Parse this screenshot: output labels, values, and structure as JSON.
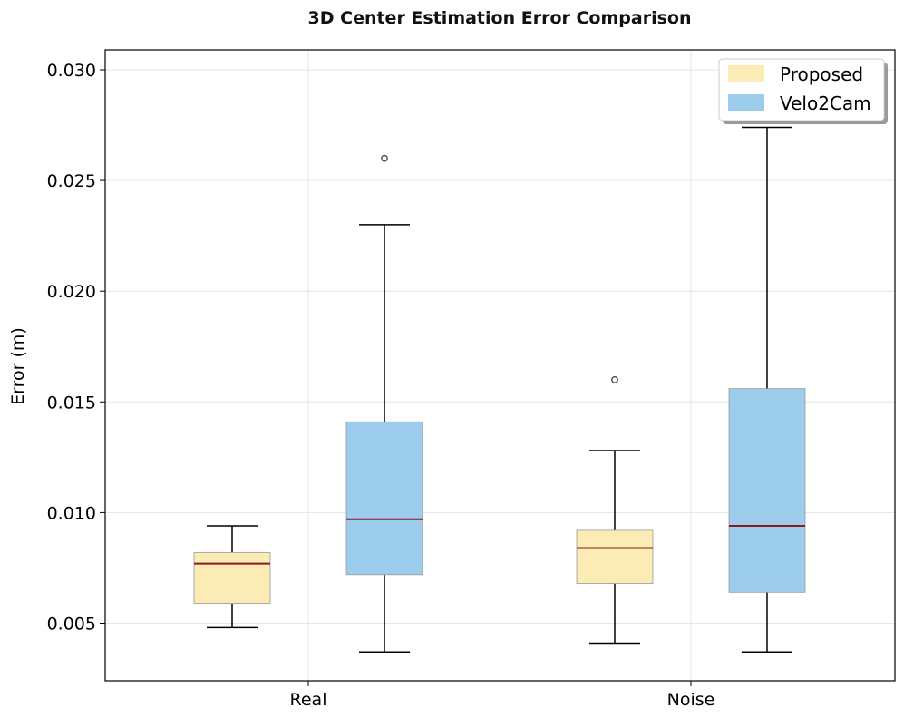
{
  "chart_data": {
    "type": "boxplot",
    "title": "3D Center Estimation Error Comparison",
    "xlabel": "",
    "ylabel": "Error (m)",
    "ylim": [
      0.0024,
      0.0309
    ],
    "yticks": [
      0.005,
      0.01,
      0.015,
      0.02,
      0.025,
      0.03
    ],
    "ytick_labels": [
      "0.005",
      "0.010",
      "0.015",
      "0.020",
      "0.025",
      "0.030"
    ],
    "categories": [
      "Real",
      "Noise"
    ],
    "grid": true,
    "legend_position": "top-right",
    "series": [
      {
        "name": "Proposed",
        "color": "#fbebb5",
        "boxes": [
          {
            "category": "Real",
            "whisker_low": 0.0048,
            "q1": 0.0059,
            "median": 0.0077,
            "q3": 0.0082,
            "whisker_high": 0.0094,
            "outliers": []
          },
          {
            "category": "Noise",
            "whisker_low": 0.0041,
            "q1": 0.0068,
            "median": 0.0084,
            "q3": 0.0092,
            "whisker_high": 0.0128,
            "outliers": [
              0.016
            ]
          }
        ]
      },
      {
        "name": "Velo2Cam",
        "color": "#9ccdec",
        "boxes": [
          {
            "category": "Real",
            "whisker_low": 0.0037,
            "q1": 0.0072,
            "median": 0.0097,
            "q3": 0.0141,
            "whisker_high": 0.023,
            "outliers": [
              0.026
            ]
          },
          {
            "category": "Noise",
            "whisker_low": 0.0037,
            "q1": 0.0064,
            "median": 0.0094,
            "q3": 0.0156,
            "whisker_high": 0.0274,
            "outliers": []
          }
        ]
      }
    ],
    "colors": {
      "median": "#8b1a1a",
      "whisker": "#000000",
      "box_edge": "#999999",
      "grid": "#e6e6e6",
      "outlier": "#555555"
    }
  }
}
